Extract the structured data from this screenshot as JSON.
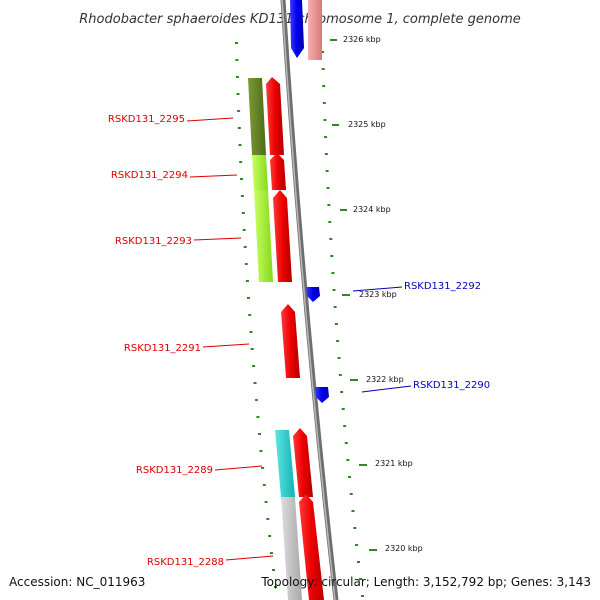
{
  "title": "Rhodobacter sphaeroides KD131 chromosome 1, complete genome",
  "footer": {
    "accession": "Accession: NC_011963",
    "summary": "Topology: circular; Length: 3,152,792 bp; Genes: 3,143"
  },
  "colors": {
    "backbone": "#8c8c8c",
    "tick": "#2e8b22",
    "forward_label": "#dd0000",
    "reverse_label": "#0000bb"
  },
  "scale_ticks": [
    "2326 kbp",
    "2325 kbp",
    "2324 kbp",
    "2323 kbp",
    "2322 kbp",
    "2321 kbp",
    "2320 kbp"
  ],
  "genes": [
    {
      "label": "RSKD131_2295",
      "strand": "forward",
      "color": "#dd0000",
      "cog_color": "#5e7d1f"
    },
    {
      "label": "RSKD131_2294",
      "strand": "forward",
      "color": "#dd0000",
      "cog_color": "#9be830"
    },
    {
      "label": "RSKD131_2293",
      "strand": "forward",
      "color": "#dd0000",
      "cog_color": "#9be830"
    },
    {
      "label": "RSKD131_2292",
      "strand": "reverse",
      "color": "#0000dd",
      "cog_color": ""
    },
    {
      "label": "RSKD131_2291",
      "strand": "forward",
      "color": "#dd0000",
      "cog_color": ""
    },
    {
      "label": "RSKD131_2290",
      "strand": "reverse",
      "color": "#0000dd",
      "cog_color": ""
    },
    {
      "label": "RSKD131_2289",
      "strand": "forward",
      "color": "#dd0000",
      "cog_color": "#1fc9c9"
    },
    {
      "label": "RSKD131_2288",
      "strand": "forward",
      "color": "#dd0000",
      "cog_color": "#c4c4c4"
    }
  ],
  "partial_top_genes": [
    {
      "strand": "reverse",
      "color": "#0000dd"
    },
    {
      "strand": "forward",
      "color": "#e89090"
    }
  ]
}
